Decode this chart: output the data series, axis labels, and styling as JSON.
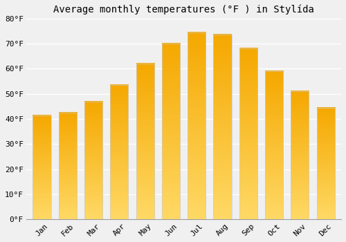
{
  "title": "Average monthly temperatures (°F ) in Stylída",
  "months": [
    "Jan",
    "Feb",
    "Mar",
    "Apr",
    "May",
    "Jun",
    "Jul",
    "Aug",
    "Sep",
    "Oct",
    "Nov",
    "Dec"
  ],
  "values": [
    41.5,
    42.5,
    47.0,
    53.5,
    62.0,
    70.0,
    74.5,
    73.5,
    68.0,
    59.0,
    51.0,
    44.5
  ],
  "bar_color_top": "#F5A800",
  "bar_color_bottom": "#FFD966",
  "ylim": [
    0,
    80
  ],
  "yticks": [
    0,
    10,
    20,
    30,
    40,
    50,
    60,
    70,
    80
  ],
  "ytick_labels": [
    "0°F",
    "10°F",
    "20°F",
    "30°F",
    "40°F",
    "50°F",
    "60°F",
    "70°F",
    "80°F"
  ],
  "background_color": "#f0f0f0",
  "grid_color": "#ffffff",
  "title_fontsize": 10,
  "tick_fontsize": 8
}
